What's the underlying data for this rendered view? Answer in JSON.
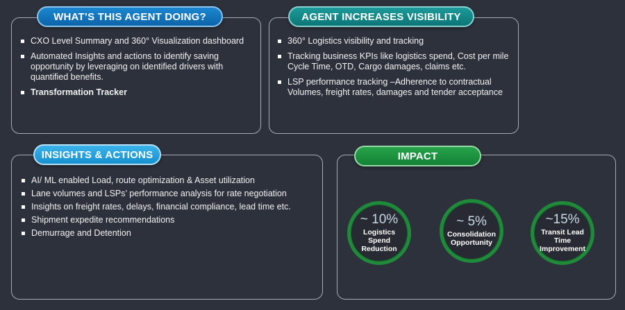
{
  "agent_doing": {
    "title": "WHAT’S THIS AGENT DOING?",
    "items": [
      "CXO Level Summary and 360° Visualization dashboard",
      "Automated Insights and actions to identify saving opportunity by leveraging on identified drivers with quantified benefits.",
      "Transformation Tracker"
    ]
  },
  "visibility": {
    "title": "AGENT INCREASES VISIBILITY",
    "items": [
      "360° Logistics visibility and tracking",
      "Tracking business KPIs like logistics spend, Cost per mile Cycle Time, OTD, Cargo damages, claims etc.",
      "LSP performance tracking –Adherence to contractual Volumes, freight rates, damages and tender acceptance"
    ]
  },
  "insights": {
    "title": "INSIGHTS & ACTIONS",
    "items": [
      "AI/ ML enabled Load, route optimization & Asset utilization",
      " Lane volumes and LSPs’ performance analysis for rate negotiation",
      "Insights on freight rates, delays, financial compliance, lead time etc.",
      "Shipment expedite recommendations",
      "Demurrage and Detention"
    ]
  },
  "impact": {
    "title": "IMPACT",
    "metrics": [
      {
        "value": "~ 10%",
        "label": "Logistics Spend Reduction"
      },
      {
        "value": "~ 5%",
        "label": "Consolidation Opportunity"
      },
      {
        "value": "~15%",
        "label": "Transit Lead Time Improvement"
      }
    ]
  },
  "colors": {
    "background": "#2d313b",
    "pill_blue": "#0d64a8",
    "pill_teal": "#0d7576",
    "pill_sky": "#1690cf",
    "pill_green": "#138236",
    "ring_green": "#1f8a3a"
  }
}
